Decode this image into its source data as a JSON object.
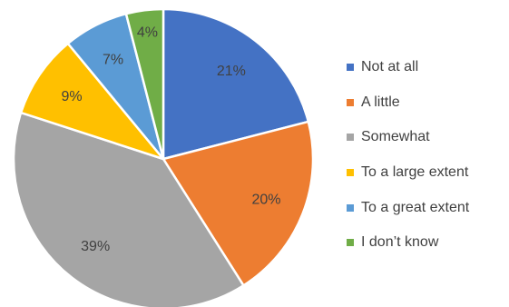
{
  "chart_data": {
    "type": "pie",
    "title": "",
    "slices": [
      {
        "label": "Not at all",
        "value": 21,
        "value_label": "21%",
        "color": "#4472C4"
      },
      {
        "label": "A little",
        "value": 20,
        "value_label": "20%",
        "color": "#ED7D31"
      },
      {
        "label": "Somewhat",
        "value": 39,
        "value_label": "39%",
        "color": "#A5A5A5"
      },
      {
        "label": "To a large extent",
        "value": 9,
        "value_label": "9%",
        "color": "#FFC000"
      },
      {
        "label": "To a great extent",
        "value": 7,
        "value_label": "7%",
        "color": "#5B9BD5"
      },
      {
        "label": "I don’t know",
        "value": 4,
        "value_label": "4%",
        "color": "#70AD47"
      }
    ],
    "start_angle": "12 o'clock, clockwise",
    "legend_position": "right"
  }
}
